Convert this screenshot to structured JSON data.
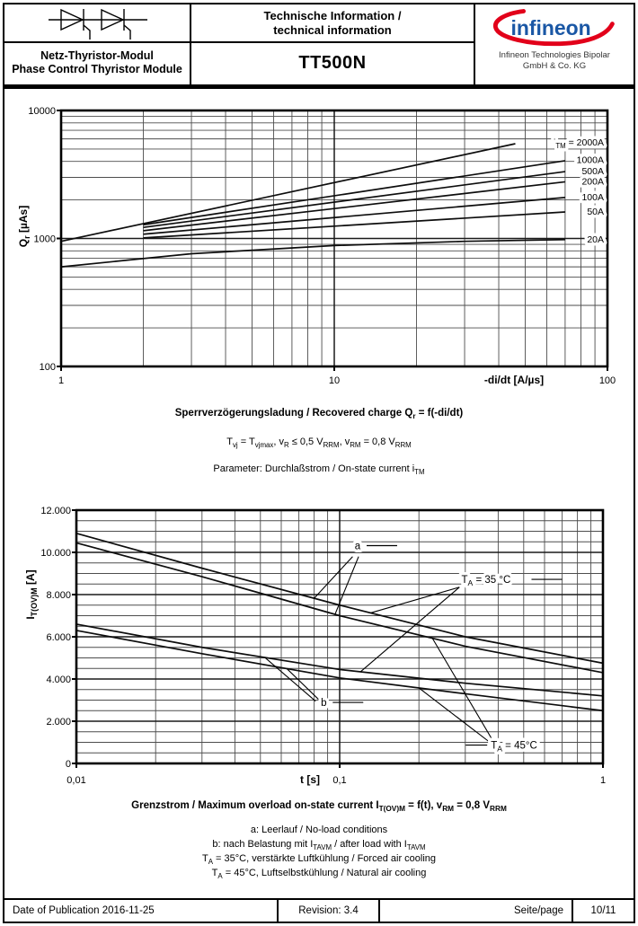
{
  "header": {
    "symbol_icon": "dual-thyristor-circuit-symbol",
    "product_family_de": "Netz-Thyristor-Modul",
    "product_family_en": "Phase Control Thyristor Module",
    "doc_title_de": "Technische Information /",
    "doc_title_en": "technical information",
    "part_number": "TT500N",
    "logo_text": "infineon",
    "company_line1": "Infineon Technologies Bipolar",
    "company_line2": "GmbH & Co. KG"
  },
  "colors": {
    "ink": "#000000",
    "grid_minor": "#4d4d4d",
    "grid_major": "#1a1a1a",
    "curve": "#0d0d0d",
    "logo_blue": "#1a57a5",
    "logo_red": "#e2001a"
  },
  "captions_top": {
    "title": "Sperrverzögerungsladung / Recovered charge Q_{r} = f(-di/dt)",
    "conditions": "T_{vj} = T_{vjmax}, v_{R} ≤ 0,5 V_{RRM}, v_{RM} = 0,8 V_{RRM}",
    "parameter": "Parameter: Durchlaßstrom / On-state current i_{TM}"
  },
  "captions_bottom": {
    "title": "Grenzstrom / Maximum overload on-state current I_{T(OV)M} = f(t), v_{RM} = 0,8 V_{RRM}",
    "line_a": "a: Leerlauf / No-load conditions",
    "line_b": "b: nach Belastung mit I_{TAVM} / after load with I_{TAVM}",
    "line_35": "T_{A} = 35°C, verstärkte Luftkühlung / Forced air cooling",
    "line_45": "T_{A} = 45°C, Luftselbstkühlung / Natural air cooling"
  },
  "footer": {
    "publication": "Date of Publication 2016-11-25",
    "revision": "Revision: 3.4",
    "page_label": "Seite/page",
    "page_number": "10/11"
  },
  "chart_data": [
    {
      "type": "line",
      "title": "Sperrverzögerungsladung / Recovered charge Qr = f(-di/dt)",
      "xlabel": "-di/dt [A/µs]",
      "ylabel": "Q_{r} [µAs]",
      "xscale": "log",
      "yscale": "log",
      "xlim": [
        1,
        100
      ],
      "ylim": [
        100,
        10000
      ],
      "x_tick_values": [
        1,
        10,
        100
      ],
      "x_tick_labels": [
        "1",
        "10",
        "100"
      ],
      "y_tick_values": [
        100,
        1000,
        10000
      ],
      "y_tick_labels": [
        "100",
        "1000",
        "10000"
      ],
      "grid": true,
      "legend_position": "right-inline",
      "parameter": "On-state current i_TM",
      "series": [
        {
          "name": "2000A",
          "label": "i_{TM} = 2000A",
          "label_y": 5650,
          "points": [
            [
              1,
              950
            ],
            [
              46,
              5500
            ]
          ]
        },
        {
          "name": "1000A",
          "label": "1000A",
          "label_y": 4100,
          "points": [
            [
              2,
              1280
            ],
            [
              70,
              4050
            ]
          ]
        },
        {
          "name": "500A",
          "label": "500A",
          "label_y": 3350,
          "points": [
            [
              2,
              1220
            ],
            [
              70,
              3330
            ]
          ]
        },
        {
          "name": "200A",
          "label": "200A",
          "label_y": 2780,
          "points": [
            [
              2,
              1150
            ],
            [
              70,
              2770
            ]
          ]
        },
        {
          "name": "100A",
          "label": "100A",
          "label_y": 2100,
          "points": [
            [
              2,
              1080
            ],
            [
              70,
              2090
            ]
          ]
        },
        {
          "name": "50A",
          "label": "50A",
          "label_y": 1620,
          "points": [
            [
              2,
              1010
            ],
            [
              70,
              1610
            ]
          ]
        },
        {
          "name": "20A",
          "label": "20A",
          "label_y": 985,
          "points": [
            [
              1,
              600
            ],
            [
              3,
              760
            ],
            [
              10,
              880
            ],
            [
              30,
              950
            ],
            [
              70,
              980
            ]
          ]
        }
      ]
    },
    {
      "type": "line",
      "title": "Grenzstrom / Maximum overload on-state current IT(OV)M = f(t), vRM = 0,8 VRRM",
      "xlabel": "t [s]",
      "ylabel": "I_{T(OV)M} [A]",
      "xscale": "log",
      "yscale": "linear",
      "xlim": [
        0.01,
        1
      ],
      "ylim": [
        0,
        12000
      ],
      "x_tick_values": [
        0.01,
        0.1,
        1
      ],
      "x_tick_labels": [
        "0,01",
        "0,1",
        "1"
      ],
      "y_tick_values": [
        0,
        2000,
        4000,
        6000,
        8000,
        10000,
        12000
      ],
      "y_tick_labels": [
        "0",
        "2.000",
        "4.000",
        "6.000",
        "8.000",
        "10.000",
        "12.000"
      ],
      "y_minor_step": 500,
      "grid": true,
      "series": [
        {
          "id": "a35",
          "name": "a, TA = 35 °C",
          "points": [
            [
              0.01,
              10900
            ],
            [
              0.03,
              9250
            ],
            [
              0.1,
              7500
            ],
            [
              0.3,
              6000
            ],
            [
              1,
              4750
            ]
          ]
        },
        {
          "id": "a45",
          "name": "a, TA = 45 °C",
          "points": [
            [
              0.01,
              10450
            ],
            [
              0.03,
              8850
            ],
            [
              0.1,
              7000
            ],
            [
              0.3,
              5550
            ],
            [
              1,
              4300
            ]
          ]
        },
        {
          "id": "b35",
          "name": "b, TA = 35 °C",
          "points": [
            [
              0.01,
              6600
            ],
            [
              0.03,
              5500
            ],
            [
              0.1,
              4450
            ],
            [
              0.3,
              3800
            ],
            [
              1,
              3200
            ]
          ]
        },
        {
          "id": "b45",
          "name": "b, TA = 45 °C",
          "points": [
            [
              0.01,
              6300
            ],
            [
              0.03,
              5200
            ],
            [
              0.1,
              4050
            ],
            [
              0.3,
              3300
            ],
            [
              1,
              2500
            ]
          ]
        }
      ],
      "annotations": [
        {
          "text": "a",
          "x": 0.117,
          "y": 10150,
          "anchor": "middle",
          "dash": "right"
        },
        {
          "text": "b",
          "x": 0.087,
          "y": 2720,
          "anchor": "middle",
          "dash": "right"
        },
        {
          "text": "T_{A} = 35 °C",
          "x": 0.29,
          "y": 8550,
          "anchor": "start",
          "dash": "right"
        },
        {
          "text": "T_{A} = 45°C",
          "x": 0.375,
          "y": 700,
          "anchor": "start",
          "dash": "left"
        }
      ],
      "leaders": [
        {
          "from": [
            0.112,
            9800
          ],
          "curve": "a35",
          "t": 0.08
        },
        {
          "from": [
            0.118,
            9800
          ],
          "curve": "a45",
          "t": 0.096
        },
        {
          "from": [
            0.285,
            8350
          ],
          "curve": "a35",
          "t": 0.131
        },
        {
          "from": [
            0.285,
            8350
          ],
          "curve": "b35",
          "t": 0.12
        },
        {
          "from": [
            0.385,
            1000
          ],
          "curve": "a45",
          "t": 0.225
        },
        {
          "from": [
            0.372,
            1000
          ],
          "curve": "b45",
          "t": 0.2
        },
        {
          "from": [
            0.081,
            2950
          ],
          "curve": "b35",
          "t": 0.052
        },
        {
          "from": [
            0.0845,
            2950
          ],
          "curve": "b45",
          "t": 0.063
        }
      ]
    }
  ]
}
